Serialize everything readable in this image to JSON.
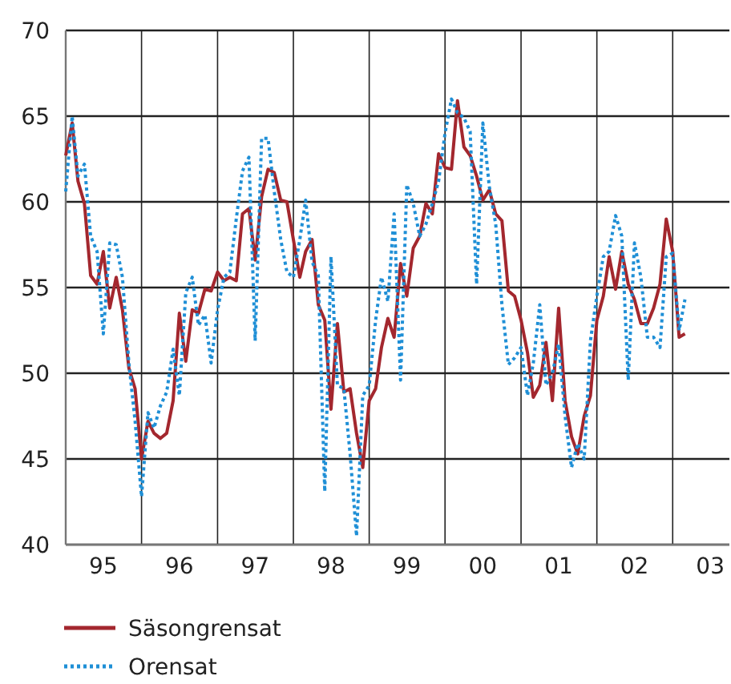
{
  "chart_data": {
    "type": "line",
    "xlim": [
      "1995-01",
      "2003-10"
    ],
    "ylim": [
      40,
      70
    ],
    "yticks": [
      40,
      45,
      50,
      55,
      60,
      65,
      70
    ],
    "xticks": [
      {
        "value": "1995-07",
        "label": "95"
      },
      {
        "value": "1996-07",
        "label": "96"
      },
      {
        "value": "1997-07",
        "label": "97"
      },
      {
        "value": "1998-07",
        "label": "98"
      },
      {
        "value": "1999-07",
        "label": "99"
      },
      {
        "value": "2000-07",
        "label": "00"
      },
      {
        "value": "2001-07",
        "label": "01"
      },
      {
        "value": "2002-07",
        "label": "02"
      },
      {
        "value": "2003-07",
        "label": "03"
      },
      {
        "value": "1996-01",
        "label": null
      },
      {
        "value": "1997-01",
        "label": null
      },
      {
        "value": "1998-01",
        "label": null
      },
      {
        "value": "1999-01",
        "label": null
      },
      {
        "value": "2000-01",
        "label": null
      },
      {
        "value": "2001-01",
        "label": null
      },
      {
        "value": "2002-01",
        "label": null
      },
      {
        "value": "2003-01",
        "label": null
      }
    ],
    "x": [
      "1995-01",
      "1995-02",
      "1995-03",
      "1995-04",
      "1995-05",
      "1995-06",
      "1995-07",
      "1995-08",
      "1995-09",
      "1995-10",
      "1995-11",
      "1995-12",
      "1996-01",
      "1996-02",
      "1996-03",
      "1996-04",
      "1996-05",
      "1996-06",
      "1996-07",
      "1996-08",
      "1996-09",
      "1996-10",
      "1996-11",
      "1996-12",
      "1997-01",
      "1997-02",
      "1997-03",
      "1997-04",
      "1997-05",
      "1997-06",
      "1997-07",
      "1997-08",
      "1997-09",
      "1997-10",
      "1997-11",
      "1997-12",
      "1998-01",
      "1998-02",
      "1998-03",
      "1998-04",
      "1998-05",
      "1998-06",
      "1998-07",
      "1998-08",
      "1998-09",
      "1998-10",
      "1998-11",
      "1998-12",
      "1999-01",
      "1999-02",
      "1999-03",
      "1999-04",
      "1999-05",
      "1999-06",
      "1999-07",
      "1999-08",
      "1999-09",
      "1999-10",
      "1999-11",
      "1999-12",
      "2000-01",
      "2000-02",
      "2000-03",
      "2000-04",
      "2000-05",
      "2000-06",
      "2000-07",
      "2000-08",
      "2000-09",
      "2000-10",
      "2000-11",
      "2000-12",
      "2001-01",
      "2001-02",
      "2001-03",
      "2001-04",
      "2001-05",
      "2001-06",
      "2001-07",
      "2001-08",
      "2001-09",
      "2001-10",
      "2001-11",
      "2001-12",
      "2002-01",
      "2002-02",
      "2002-03",
      "2002-04",
      "2002-05",
      "2002-06",
      "2002-07",
      "2002-08",
      "2002-09",
      "2002-10",
      "2002-11",
      "2002-12",
      "2003-01",
      "2003-02",
      "2003-03"
    ],
    "grid": true,
    "legend": "bottom",
    "marker": "none",
    "series": [
      {
        "name": "Säsongrensat",
        "color": "#a3272e",
        "line_style": "solid",
        "values": [
          62.7,
          64.6,
          61.2,
          59.9,
          55.7,
          55.2,
          57.1,
          53.8,
          55.6,
          53.7,
          50.3,
          49.1,
          45.0,
          47.2,
          46.5,
          46.2,
          46.5,
          48.4,
          53.5,
          50.7,
          53.7,
          53.5,
          54.9,
          54.8,
          55.9,
          55.4,
          55.6,
          55.4,
          59.3,
          59.6,
          56.6,
          60.3,
          61.9,
          61.7,
          60.1,
          60.0,
          57.8,
          55.6,
          57.1,
          57.8,
          54.0,
          53.1,
          47.9,
          52.9,
          48.9,
          49.1,
          46.5,
          44.5,
          48.4,
          49.1,
          51.5,
          53.2,
          52.1,
          56.4,
          54.5,
          57.3,
          58.0,
          59.9,
          59.3,
          62.8,
          62.0,
          61.9,
          65.9,
          63.2,
          62.7,
          61.5,
          60.1,
          60.7,
          59.3,
          58.9,
          54.8,
          54.5,
          53.1,
          51.2,
          48.6,
          49.3,
          51.8,
          48.4,
          53.8,
          48.4,
          46.3,
          45.3,
          47.5,
          48.7,
          53.1,
          54.5,
          56.8,
          54.9,
          57.1,
          55.2,
          54.3,
          52.9,
          52.9,
          53.8,
          55.2,
          59.0,
          57.1,
          52.1,
          52.3
        ]
      },
      {
        "name": "Orensat",
        "color": "#1f8fd6",
        "line_style": "dotted",
        "values": [
          60.6,
          65.0,
          61.5,
          62.2,
          58.0,
          57.1,
          52.3,
          57.6,
          57.5,
          55.6,
          50.6,
          47.2,
          42.8,
          47.7,
          46.8,
          48.1,
          48.9,
          51.4,
          48.7,
          54.7,
          55.6,
          52.8,
          53.4,
          50.6,
          53.7,
          55.6,
          55.9,
          59.0,
          61.8,
          62.6,
          51.9,
          63.7,
          63.7,
          60.6,
          57.8,
          55.9,
          55.6,
          57.8,
          60.1,
          56.5,
          55.7,
          43.1,
          56.8,
          49.3,
          49.1,
          45.3,
          40.5,
          48.7,
          49.3,
          53.1,
          55.6,
          54.2,
          59.3,
          49.6,
          61.0,
          59.9,
          58.0,
          58.7,
          59.9,
          61.2,
          64.0,
          66.0,
          65.2,
          64.9,
          64.1,
          55.2,
          64.6,
          60.9,
          58.7,
          54.0,
          50.5,
          50.9,
          51.5,
          48.7,
          50.6,
          54.0,
          49.3,
          50.0,
          51.7,
          47.5,
          44.5,
          45.9,
          45.0,
          51.9,
          54.5,
          56.8,
          57.1,
          59.2,
          58.0,
          49.6,
          57.6,
          55.6,
          52.1,
          52.1,
          51.5,
          56.8,
          57.0,
          52.5,
          54.3
        ]
      }
    ]
  }
}
